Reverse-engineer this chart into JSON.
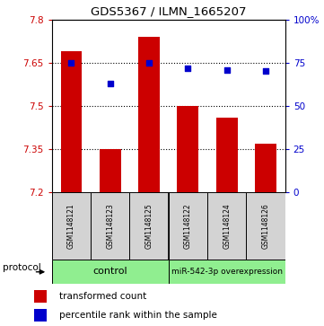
{
  "title": "GDS5367 / ILMN_1665207",
  "samples": [
    "GSM1148121",
    "GSM1148123",
    "GSM1148125",
    "GSM1148122",
    "GSM1148124",
    "GSM1148126"
  ],
  "bar_values": [
    7.69,
    7.35,
    7.74,
    7.5,
    7.46,
    7.37
  ],
  "percentile_values": [
    75,
    63,
    75,
    72,
    71,
    70
  ],
  "ymin": 7.2,
  "ymax": 7.8,
  "yticks_left": [
    7.2,
    7.35,
    7.5,
    7.65,
    7.8
  ],
  "yticks_right": [
    0,
    25,
    50,
    75,
    100
  ],
  "bar_color": "#cc0000",
  "marker_color": "#0000cc",
  "n_control": 3,
  "n_overexpression": 3,
  "control_label": "control",
  "overexpression_label": "miR-542-3p overexpression",
  "protocol_label": "protocol",
  "legend_bar_label": "transformed count",
  "legend_marker_label": "percentile rank within the sample",
  "sample_box_color": "#d3d3d3",
  "protocol_box_color": "#90ee90",
  "background_color": "#ffffff",
  "gridline_color": "#000000",
  "gridlines_at": [
    7.35,
    7.5,
    7.65
  ]
}
